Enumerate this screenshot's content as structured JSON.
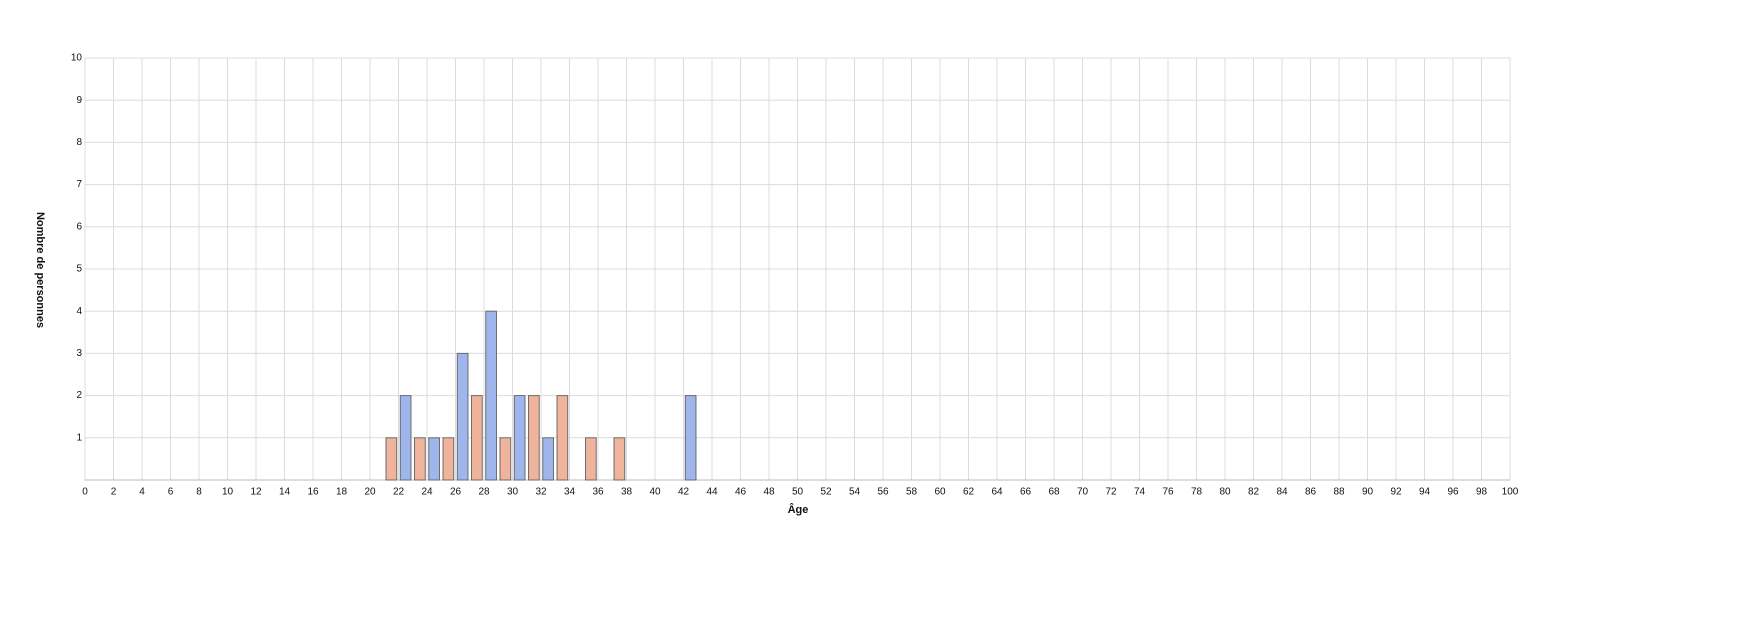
{
  "chart_data": {
    "type": "bar",
    "xlabel": "Âge",
    "ylabel": "Nombre de personnes",
    "x": [
      22,
      24,
      26,
      28,
      30,
      32,
      34,
      36,
      38,
      42
    ],
    "series": [
      {
        "color": "#f0b49c",
        "values": [
          1,
          1,
          1,
          2,
          1,
          2,
          2,
          1,
          1,
          null
        ]
      },
      {
        "color": "#9fb6ec",
        "values": [
          2,
          1,
          3,
          4,
          2,
          1,
          null,
          null,
          null,
          2
        ]
      }
    ],
    "xlim": [
      0,
      100
    ],
    "xticks": [
      0,
      2,
      4,
      6,
      8,
      10,
      12,
      14,
      16,
      18,
      20,
      22,
      24,
      26,
      28,
      30,
      32,
      34,
      36,
      38,
      40,
      42,
      44,
      46,
      48,
      50,
      52,
      54,
      56,
      58,
      60,
      62,
      64,
      66,
      68,
      70,
      72,
      74,
      76,
      78,
      80,
      82,
      84,
      86,
      88,
      90,
      92,
      94,
      96,
      98,
      100
    ],
    "ylim": [
      0,
      10
    ],
    "yticks": [
      1,
      2,
      3,
      4,
      5,
      6,
      7,
      8,
      9,
      10
    ],
    "grid": true
  }
}
